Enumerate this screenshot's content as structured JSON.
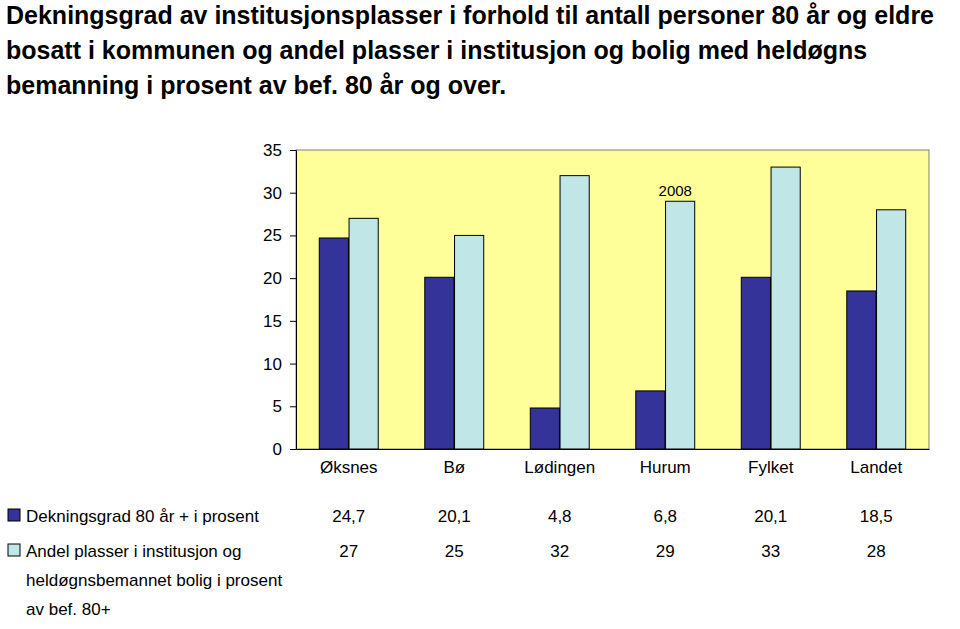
{
  "chart_data": {
    "type": "bar",
    "title": "Dekningsgrad av institusjonsplasser i forhold til antall personer 80 år og eldre bosatt i kommunen og andel plasser i institusjon og bolig med heldøgns bemanning i prosent av bef. 80 år og over.",
    "annotation": "2008",
    "categories": [
      "Øksnes",
      "Bø",
      "Lødingen",
      "Hurum",
      "Fylket",
      "Landet"
    ],
    "series": [
      {
        "name": "Dekningsgrad 80 år + i prosent",
        "color": "#333399",
        "values": [
          24.7,
          20.1,
          4.8,
          6.8,
          20.1,
          18.5
        ],
        "value_labels": [
          "24,7",
          "20,1",
          "4,8",
          "6,8",
          "20,1",
          "18,5"
        ]
      },
      {
        "name": "Andel plasser i institusjon og heldøgnsbemannet bolig i prosent av bef. 80+",
        "color": "#C0E6E8",
        "values": [
          27,
          25,
          32,
          29,
          33,
          28
        ]
      }
    ],
    "ylim": [
      0,
      35
    ],
    "yticks": [
      0,
      5,
      10,
      15,
      20,
      25,
      30,
      35
    ],
    "grid": false
  }
}
